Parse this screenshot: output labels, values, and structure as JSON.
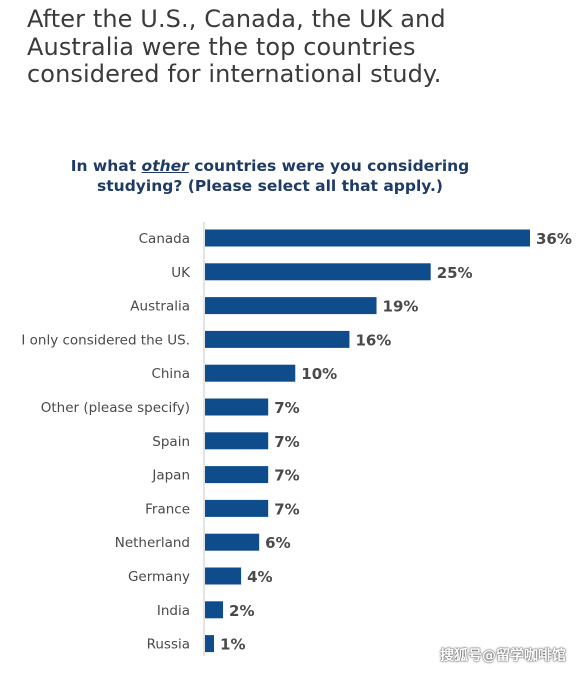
{
  "headline": {
    "line1": "After the U.S., Canada, the UK and",
    "line2": "Australia were the top countries",
    "line3": "considered for international study."
  },
  "question": {
    "part1": "In what ",
    "emphasis": "other",
    "part2": " countries were you considering",
    "line2": "studying? (Please select all that apply.)"
  },
  "chart_data": {
    "type": "bar",
    "orientation": "horizontal",
    "categories": [
      "Canada",
      "UK",
      "Australia",
      "I only considered the US.",
      "China",
      "Other (please specify)",
      "Spain",
      "Japan",
      "France",
      "Netherland",
      "Germany",
      "India",
      "Russia"
    ],
    "values": [
      36,
      25,
      19,
      16,
      10,
      7,
      7,
      7,
      7,
      6,
      4,
      2,
      1
    ],
    "value_labels": [
      "36%",
      "25%",
      "19%",
      "16%",
      "10%",
      "7%",
      "7%",
      "7%",
      "7%",
      "6%",
      "4%",
      "2%",
      "1%"
    ],
    "xlim": [
      0,
      36
    ],
    "bar_color": "#0f4c8c",
    "grid": false
  },
  "watermark": "搜狐号@留学咖啡馆"
}
